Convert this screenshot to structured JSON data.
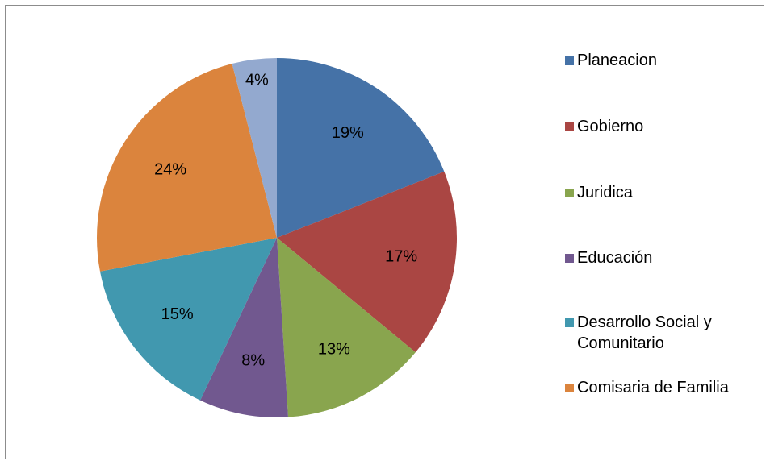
{
  "chart_data": {
    "type": "pie",
    "title": "",
    "legend_position": "right",
    "categories": [
      "Planeacion",
      "Gobierno",
      "Juridica",
      "Educación",
      "Desarrollo Social y Comunitario",
      "Comisaria de Familia",
      ""
    ],
    "values": [
      19,
      17,
      13,
      8,
      15,
      24,
      4
    ],
    "labels": [
      "19%",
      "17%",
      "13%",
      "8%",
      "15%",
      "24%",
      "4%"
    ],
    "colors": [
      "#4572a7",
      "#aa4643",
      "#89a54e",
      "#71588f",
      "#4198af",
      "#db843d",
      "#93a9cf"
    ],
    "legend": [
      {
        "label": "Planeacion",
        "color": "#4572a7"
      },
      {
        "label": "Gobierno",
        "color": "#aa4643"
      },
      {
        "label": "Juridica",
        "color": "#89a54e"
      },
      {
        "label": "Educación",
        "color": "#71588f"
      },
      {
        "label": "Desarrollo Social y Comunitario",
        "color": "#4198af"
      },
      {
        "label": "Comisaria de Familia",
        "color": "#db843d"
      }
    ]
  }
}
